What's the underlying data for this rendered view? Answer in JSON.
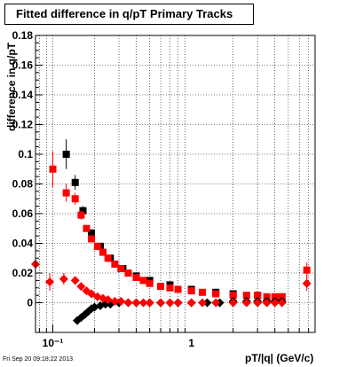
{
  "title": "Fitted difference in q/pT  Primary Tracks",
  "footer": "Fri Sep 20 09:18:22 2013",
  "chart_data": {
    "type": "scatter",
    "title": "Fitted difference in q/pT  Primary Tracks",
    "xlabel": "pT/|q| (GeV/c)",
    "ylabel": "difference in q/pT",
    "xscale": "log",
    "xlim": [
      0.075,
      7.8
    ],
    "ylim": [
      -0.02,
      0.18
    ],
    "xticks": [
      0.1,
      1
    ],
    "xtick_labels": [
      "10⁻¹",
      "1"
    ],
    "yticks": [
      0,
      0.02,
      0.04,
      0.06,
      0.08,
      0.1,
      0.12,
      0.14,
      0.16,
      0.18
    ],
    "ytick_labels": [
      "0",
      "0.02",
      "0.04",
      "0.06",
      "0.08",
      "0.1",
      "0.12",
      "0.14",
      "0.16",
      "0.18"
    ],
    "grid": true,
    "series": [
      {
        "marker": "square",
        "color": "#000000",
        "x": [
          0.125,
          0.145,
          0.165,
          0.19,
          0.22,
          0.26,
          0.32,
          0.4,
          0.5,
          0.7,
          1.0,
          1.5,
          2.0,
          3.0,
          4.5
        ],
        "y": [
          0.1,
          0.081,
          0.062,
          0.047,
          0.038,
          0.03,
          0.023,
          0.018,
          0.015,
          0.012,
          0.009,
          0.007,
          0.006,
          0.005,
          0.004
        ],
        "yerr": [
          0.01,
          0.005,
          0.003,
          0.002,
          0.002,
          0.0015,
          0.001,
          0.001,
          0.001,
          0.001,
          0.001,
          0.001,
          0.001,
          0.001,
          0.001
        ]
      },
      {
        "marker": "square",
        "color": "#ff0000",
        "x": [
          0.1,
          0.125,
          0.145,
          0.16,
          0.175,
          0.19,
          0.21,
          0.23,
          0.25,
          0.28,
          0.31,
          0.35,
          0.4,
          0.45,
          0.5,
          0.6,
          0.7,
          0.8,
          1.0,
          1.2,
          1.5,
          2.0,
          2.5,
          3.0,
          3.5,
          4.0,
          4.5,
          6.8
        ],
        "y": [
          0.09,
          0.074,
          0.07,
          0.059,
          0.05,
          0.043,
          0.038,
          0.034,
          0.03,
          0.026,
          0.023,
          0.02,
          0.017,
          0.015,
          0.013,
          0.011,
          0.01,
          0.009,
          0.008,
          0.007,
          0.006,
          0.005,
          0.005,
          0.005,
          0.004,
          0.004,
          0.004,
          0.022
        ],
        "yerr": [
          0.012,
          0.006,
          0.004,
          0.003,
          0.002,
          0.002,
          0.002,
          0.001,
          0.001,
          0.001,
          0.001,
          0.001,
          0.001,
          0.001,
          0.001,
          0.001,
          0.001,
          0.001,
          0.001,
          0.001,
          0.001,
          0.001,
          0.001,
          0.001,
          0.001,
          0.001,
          0.001,
          0.005
        ]
      },
      {
        "marker": "diamond",
        "color": "#000000",
        "x": [
          0.15,
          0.16,
          0.17,
          0.18,
          0.19,
          0.2,
          0.22,
          0.24,
          0.26,
          0.3,
          0.35,
          0.4,
          0.5,
          0.6,
          0.8,
          1.0,
          1.3,
          1.6,
          2.0,
          2.5,
          3.0,
          3.5,
          4.0,
          4.5
        ],
        "y": [
          -0.012,
          -0.01,
          -0.008,
          -0.006,
          -0.004,
          -0.003,
          -0.002,
          -0.001,
          -0.001,
          0.0,
          0.0,
          0.0,
          0.0,
          0.0,
          0.0,
          0.0,
          0.0,
          0.0,
          0.001,
          0.001,
          0.001,
          0.001,
          0.001,
          0.001
        ],
        "yerr": []
      },
      {
        "marker": "diamond",
        "color": "#ff0000",
        "x": [
          0.075,
          0.095,
          0.12,
          0.145,
          0.16,
          0.175,
          0.19,
          0.21,
          0.23,
          0.25,
          0.28,
          0.31,
          0.35,
          0.4,
          0.45,
          0.5,
          0.6,
          0.7,
          0.8,
          1.0,
          1.2,
          1.5,
          2.0,
          2.5,
          3.0,
          3.5,
          4.0,
          4.5,
          6.8
        ],
        "y": [
          0.026,
          0.014,
          0.016,
          0.015,
          0.011,
          0.008,
          0.006,
          0.004,
          0.003,
          0.002,
          0.001,
          0.001,
          0.0,
          0.0,
          0.0,
          0.0,
          0.0,
          0.0,
          0.0,
          0.0,
          0.0,
          0.0,
          0.0,
          0.0,
          0.0,
          0.0,
          0.0,
          0.0,
          0.013
        ],
        "yerr": [
          0.002,
          0.006,
          0.004,
          0.002,
          0.002,
          0.001,
          0.001,
          0.001,
          0.001,
          0.001,
          0.001,
          0.001,
          0.001,
          0.001,
          0.001,
          0.001,
          0.001,
          0.001,
          0.001,
          0.001,
          0.001,
          0.001,
          0.001,
          0.001,
          0.001,
          0.001,
          0.001,
          0.001,
          0.005
        ]
      }
    ]
  }
}
